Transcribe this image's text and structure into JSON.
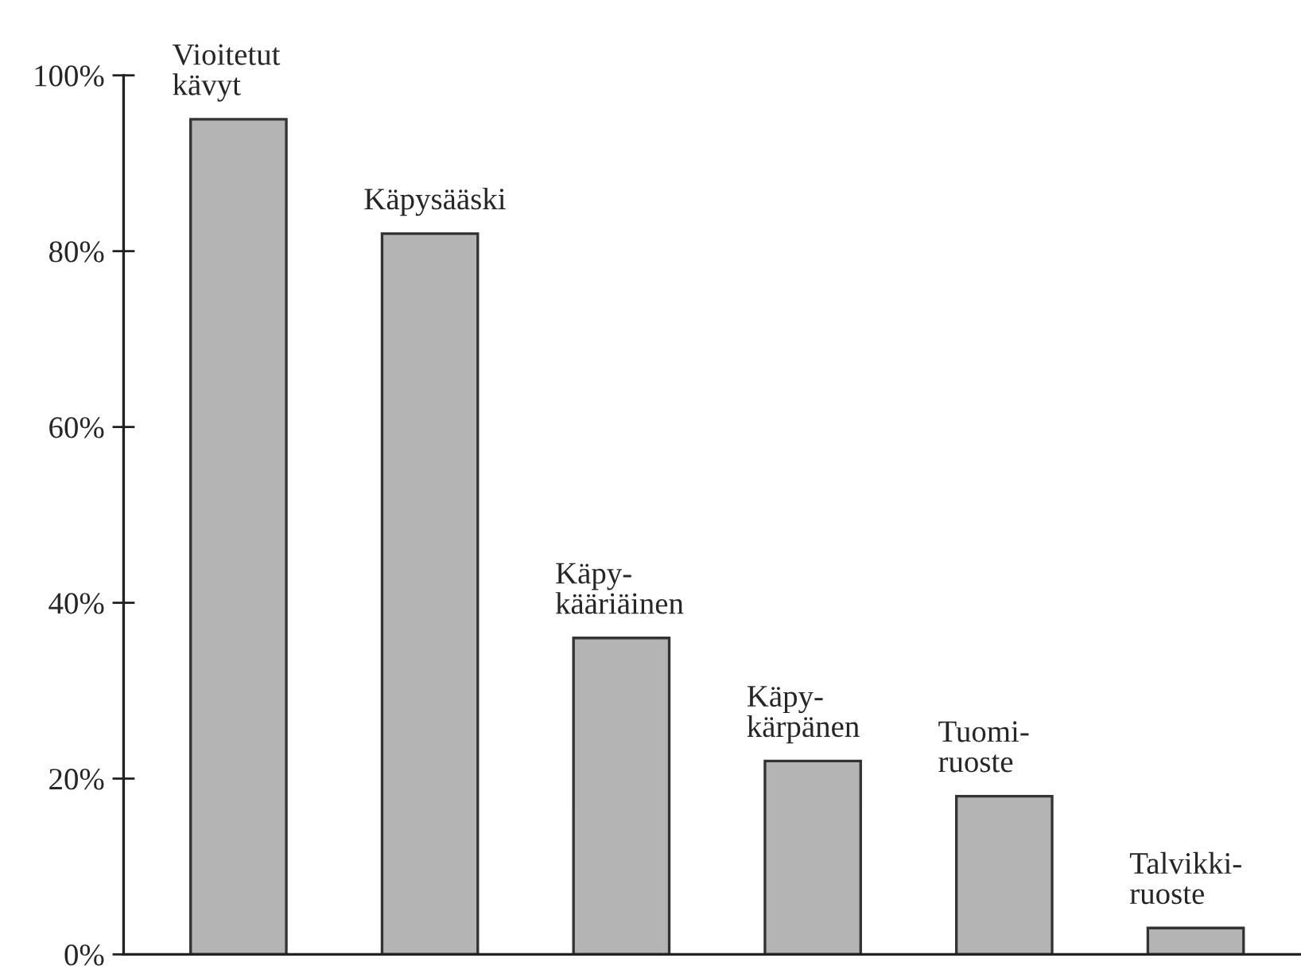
{
  "chart_data": {
    "type": "bar",
    "categories": [
      "Vioitetut\nkävyt",
      "Käpysääski",
      "Käpy-\nkääriäinen",
      "Käpy-\nkärpänen",
      "Tuomi-\nruoste",
      "Talvikki-\nruoste"
    ],
    "values": [
      95,
      82,
      36,
      22,
      18,
      3
    ],
    "color": "#b4b4b4",
    "ylim": [
      0,
      100
    ],
    "yticks": [
      {
        "value": 0,
        "label": "0%"
      },
      {
        "value": 20,
        "label": "20%"
      },
      {
        "value": 40,
        "label": "40%"
      },
      {
        "value": 60,
        "label": "60%"
      },
      {
        "value": 80,
        "label": "80%"
      },
      {
        "value": 100,
        "label": "100%"
      }
    ],
    "grid": false,
    "legend": false
  }
}
